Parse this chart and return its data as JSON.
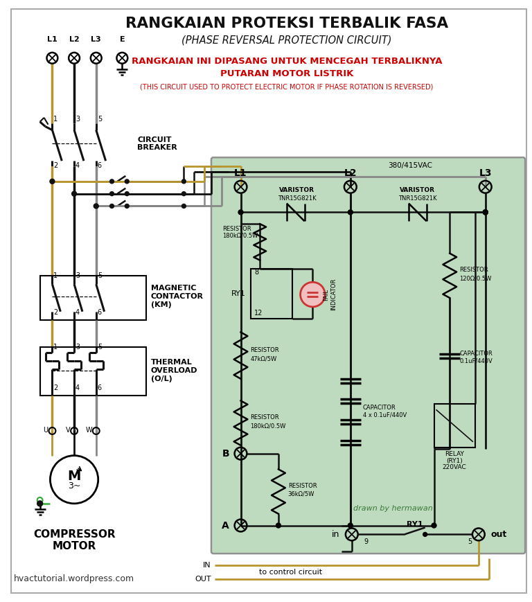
{
  "title": "RANGKAIAN PROTEKSI TERBALIK FASA",
  "subtitle": "(PHASE REVERSAL PROTECTION CIRCUIT)",
  "warning_line1": "RANGKAIAN INI DIPASANG UNTUK MENCEGAH TERBALIKNYA",
  "warning_line2": "PUTARAN MOTOR LISTRIK",
  "warning_sub": "(THIS CIRCUIT USED TO PROTECT ELECTRIC MOTOR IF PHASE ROTATION IS REVERSED)",
  "website": "hvactutorial.wordpress.com",
  "drawn_by": "drawn by hermawan",
  "bg_color": "#ffffff",
  "green_box_color": "#b8d8b8",
  "title_color": "#111111",
  "warning_color": "#cc0000",
  "wire_tan": "#b8962e",
  "wire_black": "#111111",
  "wire_gray": "#888888",
  "wire_green": "#33aa33",
  "border_color": "#aaaaaa"
}
